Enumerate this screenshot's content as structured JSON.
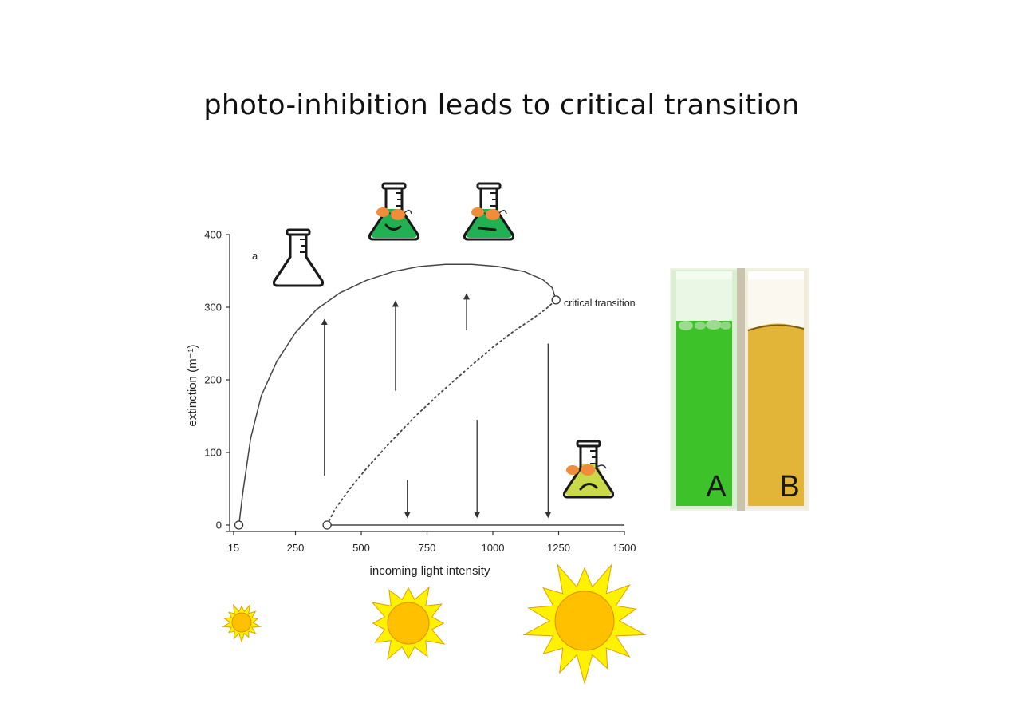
{
  "title": "photo-inhibition leads to critical transition",
  "chart_data": {
    "type": "line",
    "panel_label": "a",
    "xlabel": "incoming light intensity",
    "ylabel": "extinction (m⁻¹)",
    "xlim": [
      0,
      1500
    ],
    "ylim": [
      0,
      400
    ],
    "x_ticks": [
      15,
      250,
      500,
      750,
      1000,
      1250,
      1500
    ],
    "y_ticks": [
      0,
      100,
      200,
      300,
      400
    ],
    "annotation": "critical transition",
    "series": [
      {
        "style": "solid",
        "x": [
          35,
          50,
          80,
          120,
          180,
          250,
          330,
          420,
          520,
          620,
          720,
          820,
          920,
          1020,
          1120,
          1190,
          1225,
          1240
        ],
        "y": [
          0,
          45,
          120,
          178,
          226,
          265,
          297,
          320,
          337,
          349,
          356,
          359,
          359,
          356,
          349,
          338,
          327,
          310
        ]
      },
      {
        "style": "dotted",
        "x": [
          370,
          400,
          450,
          520,
          600,
          700,
          800,
          900,
          1000,
          1080,
          1150,
          1200,
          1240
        ],
        "y": [
          0,
          22,
          47,
          78,
          110,
          148,
          182,
          214,
          245,
          267,
          284,
          297,
          310
        ]
      },
      {
        "style": "solid",
        "x": [
          370,
          1500
        ],
        "y": [
          0,
          0
        ]
      }
    ],
    "points": [
      {
        "x": 35,
        "y": 0
      },
      {
        "x": 370,
        "y": 0
      },
      {
        "x": 1240,
        "y": 310
      }
    ],
    "arrows": [
      {
        "x": 360,
        "from": 68,
        "to": 280
      },
      {
        "x": 630,
        "from": 185,
        "to": 305
      },
      {
        "x": 900,
        "from": 268,
        "to": 315
      },
      {
        "x": 675,
        "from": 62,
        "to": 14
      },
      {
        "x": 940,
        "from": 145,
        "to": 14
      },
      {
        "x": 1210,
        "from": 250,
        "to": 14
      }
    ]
  },
  "photo": {
    "labels": [
      "A",
      "B"
    ],
    "colors": {
      "green": "#3ec229",
      "yellow": "#e2b437"
    }
  },
  "icons": {
    "flask": "flask-icon",
    "sun": "sun-icon",
    "flask_colors": {
      "healthy": "#22b152",
      "stressed": "#c9d94a",
      "glasses": "#f28b3a"
    },
    "sun_colors": {
      "rays": "#fff200",
      "core": "#ffc000",
      "outline": "#e0a000"
    }
  }
}
